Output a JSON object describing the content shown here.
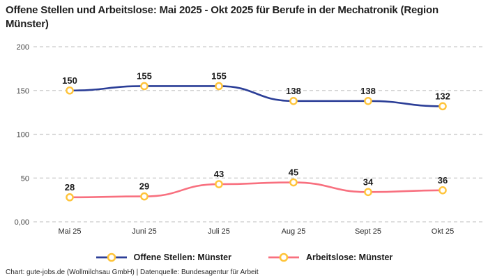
{
  "title": "Offene Stellen und Arbeitslose: Mai 2025 - Okt 2025 für Berufe in der Mechatronik (Region Münster)",
  "footer": "Chart: gute-jobs.de (Wollmilchsau GmbH) | Datenquelle: Bundesagentur für Arbeit",
  "chart_data": {
    "type": "line",
    "title": "Offene Stellen und Arbeitslose: Mai 2025 - Okt 2025 für Berufe in der Mechatronik (Region Münster)",
    "categories": [
      "Mai 25",
      "Juni 25",
      "Juli 25",
      "Aug 25",
      "Sept 25",
      "Okt 25"
    ],
    "series": [
      {
        "name": "Offene Stellen: Münster",
        "values": [
          150,
          155,
          155,
          138,
          138,
          132
        ],
        "color": "#2b3e97"
      },
      {
        "name": "Arbeitslose: Münster",
        "values": [
          28,
          29,
          43,
          45,
          34,
          36
        ],
        "color": "#f8707f"
      }
    ],
    "marker_color": "#ffc43a",
    "marker_fill": "#ffffff",
    "grid_color": "#cbcbcb",
    "label_color": "#1c1c1c",
    "tick_color": "#444444",
    "y_ticks": [
      "200",
      "150",
      "100",
      "50",
      "0,00"
    ],
    "y_tick_values": [
      200,
      150,
      100,
      50,
      0
    ],
    "ylim": [
      0,
      200
    ],
    "xlabel": "",
    "ylabel": "",
    "grid": "horizontal-dashed",
    "legend_position": "bottom"
  }
}
